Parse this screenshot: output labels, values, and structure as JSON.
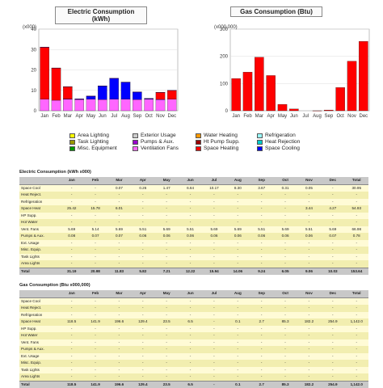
{
  "charts": {
    "electric": {
      "title": "Electric Consumption (kWh)",
      "unit_label": "(x000)"
    },
    "gas": {
      "title": "Gas Consumption (Btu)",
      "unit_label": "(x000,000)"
    }
  },
  "chart_data": [
    {
      "type": "bar",
      "title": "Electric Consumption (kWh)",
      "ylabel": "(x000)",
      "categories": [
        "Jan",
        "Feb",
        "Mar",
        "Apr",
        "May",
        "Jun",
        "Jul",
        "Aug",
        "Sep",
        "Oct",
        "Nov",
        "Dec"
      ],
      "stacked": true,
      "ylim": [
        0,
        40
      ],
      "yticks": [
        0,
        10,
        20,
        30,
        40
      ],
      "series": [
        {
          "name": "Ventilation Fans",
          "color": "#ff66ff",
          "values": [
            5.69,
            5.14,
            5.69,
            5.51,
            5.69,
            5.51,
            5.69,
            5.69,
            5.51,
            5.69,
            5.51,
            5.69
          ]
        },
        {
          "name": "Space Cooling",
          "color": "#0000ff",
          "values": [
            0,
            0,
            0.07,
            0.26,
            1.47,
            6.64,
            10.17,
            8.3,
            3.67,
            0.31,
            0.05,
            0
          ]
        },
        {
          "name": "Space Heating",
          "color": "#ff0000",
          "values": [
            25.42,
            15.78,
            6.01,
            0,
            0,
            0,
            0,
            0,
            0,
            0,
            3.44,
            4.27
          ]
        },
        {
          "name": "Pumps & Aux.",
          "color": "#9900cc",
          "values": [
            0.08,
            0.07,
            0.07,
            0.06,
            0.06,
            0.06,
            0.06,
            0.06,
            0.06,
            0.06,
            0.06,
            0.07
          ]
        }
      ]
    },
    {
      "type": "bar",
      "title": "Gas Consumption (Btu)",
      "ylabel": "(x000,000)",
      "categories": [
        "Jan",
        "Feb",
        "Mar",
        "Apr",
        "May",
        "Jun",
        "Jul",
        "Aug",
        "Sep",
        "Oct",
        "Nov",
        "Dec"
      ],
      "ylim": [
        0,
        300
      ],
      "yticks": [
        0,
        100,
        200,
        300
      ],
      "series": [
        {
          "name": "Space Heating",
          "color": "#ff0000",
          "values": [
            118.5,
            141.9,
            196.6,
            129.4,
            23.5,
            6.5,
            0,
            0.1,
            2.7,
            85.3,
            182.2,
            254.9
          ]
        }
      ]
    }
  ],
  "legend": [
    {
      "label": "Area Lighting",
      "color": "#ffff00"
    },
    {
      "label": "Task Lighting",
      "color": "#999900"
    },
    {
      "label": "Misc. Equipment",
      "color": "#009900"
    },
    {
      "label": "Exterior Usage",
      "color": "#cccccc"
    },
    {
      "label": "Pumps & Aux.",
      "color": "#9900cc"
    },
    {
      "label": "Ventilation Fans",
      "color": "#ff66ff"
    },
    {
      "label": "Water Heating",
      "color": "#ff9900"
    },
    {
      "label": "Ht Pump Supp.",
      "color": "#990000"
    },
    {
      "label": "Space Heating",
      "color": "#ff0000"
    },
    {
      "label": "Refrigeration",
      "color": "#99ffff"
    },
    {
      "label": "Heat Rejection",
      "color": "#00cccc"
    },
    {
      "label": "Space Cooling",
      "color": "#0000ff"
    }
  ],
  "electric_table": {
    "title": "Electric Consumption (kWh x000)",
    "headers": [
      "",
      "Jan",
      "Feb",
      "Mar",
      "Apr",
      "May",
      "Jun",
      "Jul",
      "Aug",
      "Sep",
      "Oct",
      "Nov",
      "Dec",
      "Total"
    ],
    "rows": [
      [
        "Space Cool",
        "-",
        "-",
        "0.07",
        "0.26",
        "1.47",
        "6.64",
        "10.17",
        "8.30",
        "3.67",
        "0.31",
        "0.05",
        "-",
        "30.95"
      ],
      [
        "Heat Reject.",
        "-",
        "-",
        "-",
        "-",
        "-",
        "-",
        "-",
        "-",
        "-",
        "-",
        "-",
        "-",
        "-"
      ],
      [
        "Refrigeration",
        "-",
        "-",
        "-",
        "-",
        "-",
        "-",
        "-",
        "-",
        "-",
        "-",
        "-",
        "-",
        "-"
      ],
      [
        "Space Heat",
        "25.42",
        "15.78",
        "6.01",
        "-",
        "-",
        "-",
        "-",
        "-",
        "-",
        "-",
        "3.44",
        "4.27",
        "54.93"
      ],
      [
        "HP Supp.",
        "-",
        "-",
        "-",
        "-",
        "-",
        "-",
        "-",
        "-",
        "-",
        "-",
        "-",
        "-",
        "-"
      ],
      [
        "Hot Water",
        "-",
        "-",
        "-",
        "-",
        "-",
        "-",
        "-",
        "-",
        "-",
        "-",
        "-",
        "-",
        "-"
      ],
      [
        "Vent. Fans",
        "5.69",
        "5.14",
        "5.69",
        "5.51",
        "5.69",
        "5.51",
        "5.69",
        "5.69",
        "5.51",
        "5.69",
        "5.51",
        "5.69",
        "66.98"
      ],
      [
        "Pumps & Aux.",
        "0.08",
        "0.07",
        "0.07",
        "0.06",
        "0.06",
        "0.06",
        "0.06",
        "0.06",
        "0.06",
        "0.06",
        "0.06",
        "0.07",
        "0.78"
      ],
      [
        "Ext. Usage",
        "-",
        "-",
        "-",
        "-",
        "-",
        "-",
        "-",
        "-",
        "-",
        "-",
        "-",
        "-",
        "-"
      ],
      [
        "Misc. Equip.",
        "-",
        "-",
        "-",
        "-",
        "-",
        "-",
        "-",
        "-",
        "-",
        "-",
        "-",
        "-",
        "-"
      ],
      [
        "Task Lights",
        "-",
        "-",
        "-",
        "-",
        "-",
        "-",
        "-",
        "-",
        "-",
        "-",
        "-",
        "-",
        "-"
      ],
      [
        "Area Lights",
        "-",
        "-",
        "-",
        "-",
        "-",
        "-",
        "-",
        "-",
        "-",
        "-",
        "-",
        "-",
        "-"
      ]
    ],
    "total": [
      "Total",
      "31.19",
      "20.98",
      "11.83",
      "5.82",
      "7.21",
      "12.22",
      "15.94",
      "14.06",
      "9.24",
      "6.05",
      "9.06",
      "10.03",
      "153.64"
    ]
  },
  "gas_table": {
    "title": "Gas Consumption (Btu x000,000)",
    "headers": [
      "",
      "Jan",
      "Feb",
      "Mar",
      "Apr",
      "May",
      "Jun",
      "Jul",
      "Aug",
      "Sep",
      "Oct",
      "Nov",
      "Dec",
      "Total"
    ],
    "rows": [
      [
        "Space Cool",
        "-",
        "-",
        "-",
        "-",
        "-",
        "-",
        "-",
        "-",
        "-",
        "-",
        "-",
        "-",
        "-"
      ],
      [
        "Heat Reject.",
        "-",
        "-",
        "-",
        "-",
        "-",
        "-",
        "-",
        "-",
        "-",
        "-",
        "-",
        "-",
        "-"
      ],
      [
        "Refrigeration",
        "-",
        "-",
        "-",
        "-",
        "-",
        "-",
        "-",
        "-",
        "-",
        "-",
        "-",
        "-",
        "-"
      ],
      [
        "Space Heat",
        "118.5",
        "141.9",
        "196.6",
        "129.4",
        "23.5",
        "6.5",
        "-",
        "0.1",
        "2.7",
        "85.3",
        "182.2",
        "254.9",
        "1,142.0"
      ],
      [
        "HP Supp.",
        "-",
        "-",
        "-",
        "-",
        "-",
        "-",
        "-",
        "-",
        "-",
        "-",
        "-",
        "-",
        "-"
      ],
      [
        "Hot Water",
        "-",
        "-",
        "-",
        "-",
        "-",
        "-",
        "-",
        "-",
        "-",
        "-",
        "-",
        "-",
        "-"
      ],
      [
        "Vent. Fans",
        "-",
        "-",
        "-",
        "-",
        "-",
        "-",
        "-",
        "-",
        "-",
        "-",
        "-",
        "-",
        "-"
      ],
      [
        "Pumps & Aux.",
        "-",
        "-",
        "-",
        "-",
        "-",
        "-",
        "-",
        "-",
        "-",
        "-",
        "-",
        "-",
        "-"
      ],
      [
        "Ext. Usage",
        "-",
        "-",
        "-",
        "-",
        "-",
        "-",
        "-",
        "-",
        "-",
        "-",
        "-",
        "-",
        "-"
      ],
      [
        "Misc. Equip.",
        "-",
        "-",
        "-",
        "-",
        "-",
        "-",
        "-",
        "-",
        "-",
        "-",
        "-",
        "-",
        "-"
      ],
      [
        "Task Lights",
        "-",
        "-",
        "-",
        "-",
        "-",
        "-",
        "-",
        "-",
        "-",
        "-",
        "-",
        "-",
        "-"
      ],
      [
        "Area Lights",
        "-",
        "-",
        "-",
        "-",
        "-",
        "-",
        "-",
        "-",
        "-",
        "-",
        "-",
        "-",
        "-"
      ]
    ],
    "total": [
      "Total",
      "118.5",
      "141.9",
      "196.6",
      "129.4",
      "23.5",
      "6.5",
      "-",
      "0.1",
      "2.7",
      "85.3",
      "182.2",
      "254.9",
      "1,142.0"
    ]
  }
}
